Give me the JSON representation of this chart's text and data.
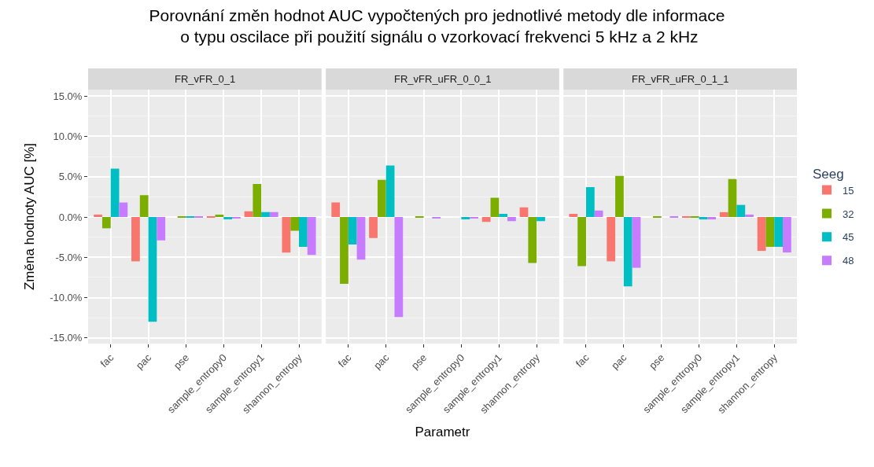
{
  "chart_data": [
    {
      "type": "bar",
      "title": "Porovnání změn hodnot AUC vypočtených pro jednotlivé metody dle informace\n o typu oscilace při použití signálu o vzorkovací frekvenci 5 kHz a 2 kHz",
      "subtitle": "FR_vFR_0_1",
      "ylabel": "Změna hodnoty AUC [%]",
      "legend_title": "Seeg",
      "legend": "right",
      "grid": true,
      "tick_labels": "xy",
      "categories": [
        "fac",
        "pac",
        "pse",
        "sample_entropy0",
        "sample_entropy1",
        "shannon_entropy"
      ],
      "ylim": [
        -15.7,
        15.8
      ],
      "yticks": [
        {
          "value": -15,
          "label": "-15.0%"
        },
        {
          "value": -10,
          "label": "-10.0%"
        },
        {
          "value": -5,
          "label": "-5.0%"
        },
        {
          "value": 0,
          "label": "0.0%"
        },
        {
          "value": 5,
          "label": "5.0%"
        },
        {
          "value": 10,
          "label": "10.0%"
        },
        {
          "value": 15,
          "label": "15.0%"
        }
      ],
      "series": [
        {
          "name": "15",
          "color": "#f8766d",
          "values": [
            0.3,
            -5.5,
            0,
            0.1,
            0.7,
            -4.4
          ]
        },
        {
          "name": "32",
          "color": "#7cae00",
          "values": [
            -1.4,
            2.7,
            0.1,
            0.3,
            4.1,
            -1.7
          ]
        },
        {
          "name": "45",
          "color": "#00bfc4",
          "values": [
            6.0,
            -13.0,
            0.1,
            -0.3,
            0.6,
            -3.7
          ]
        },
        {
          "name": "48",
          "color": "#c77cff",
          "values": [
            1.8,
            -2.9,
            0.1,
            -0.2,
            0.6,
            -4.7
          ]
        }
      ]
    },
    {
      "type": "bar",
      "subtitle": "FR_vFR_uFR_0_0_1",
      "xlabel": "Parametr",
      "grid": true,
      "tick_labels": "x",
      "categories": [
        "fac",
        "pac",
        "pse",
        "sample_entropy0",
        "sample_entropy1",
        "shannon_entropy"
      ],
      "ylim": [
        -15.7,
        15.8
      ],
      "yticks": [
        -15,
        -10,
        -5,
        0,
        5,
        10,
        15
      ],
      "series": [
        {
          "name": "15",
          "color": "#f8766d",
          "values": [
            1.8,
            -2.6,
            0,
            0,
            -0.6,
            1.2
          ]
        },
        {
          "name": "32",
          "color": "#7cae00",
          "values": [
            -8.3,
            4.6,
            0.1,
            0,
            2.4,
            -5.7
          ]
        },
        {
          "name": "45",
          "color": "#00bfc4",
          "values": [
            -3.4,
            6.4,
            0,
            -0.3,
            0.4,
            -0.5
          ]
        },
        {
          "name": "48",
          "color": "#c77cff",
          "values": [
            -5.3,
            -12.4,
            -0.2,
            -0.2,
            -0.5,
            0
          ]
        }
      ]
    },
    {
      "type": "bar",
      "subtitle": "FR_vFR_uFR_0_1_1",
      "grid": true,
      "tick_labels": "x",
      "categories": [
        "fac",
        "pac",
        "pse",
        "sample_entropy0",
        "sample_entropy1",
        "shannon_entropy"
      ],
      "ylim": [
        -15.7,
        15.8
      ],
      "yticks": [
        -15,
        -10,
        -5,
        0,
        5,
        10,
        15
      ],
      "series": [
        {
          "name": "15",
          "color": "#f8766d",
          "values": [
            0.4,
            -5.5,
            0,
            0.1,
            0.6,
            -4.2
          ]
        },
        {
          "name": "32",
          "color": "#7cae00",
          "values": [
            -6.1,
            5.1,
            0.1,
            0.1,
            4.7,
            -3.7
          ]
        },
        {
          "name": "45",
          "color": "#00bfc4",
          "values": [
            3.7,
            -8.6,
            0,
            -0.3,
            1.5,
            -3.7
          ]
        },
        {
          "name": "48",
          "color": "#c77cff",
          "values": [
            0.8,
            -6.3,
            0.1,
            -0.3,
            0.3,
            -4.4
          ]
        }
      ]
    }
  ]
}
